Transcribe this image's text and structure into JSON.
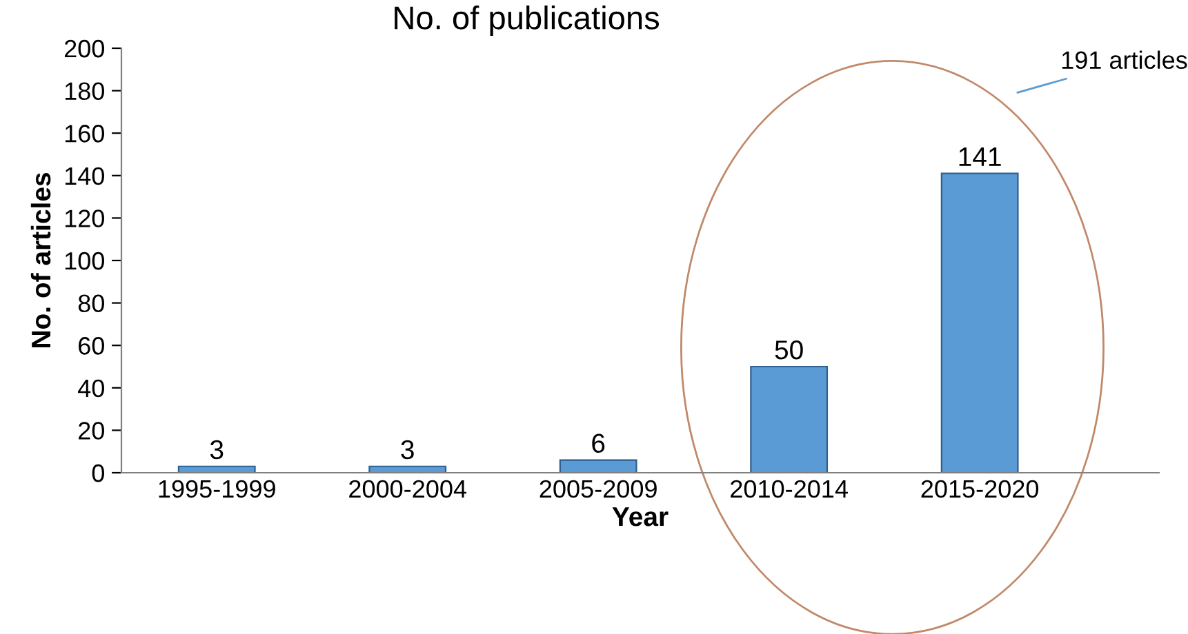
{
  "chart_data": {
    "type": "bar",
    "title": "No. of publications",
    "xlabel": "Year",
    "ylabel": "No. of articles",
    "categories": [
      "1995-1999",
      "2000-2004",
      "2005-2009",
      "2010-2014",
      "2015-2020"
    ],
    "values": [
      3,
      3,
      6,
      50,
      141
    ],
    "color": "#5b9bd5",
    "data_labels": true,
    "ylim": [
      0,
      200
    ],
    "yticks": [
      0,
      20,
      40,
      60,
      80,
      100,
      120,
      140,
      160,
      180,
      200
    ],
    "annotations": [
      "191 articles"
    ]
  }
}
